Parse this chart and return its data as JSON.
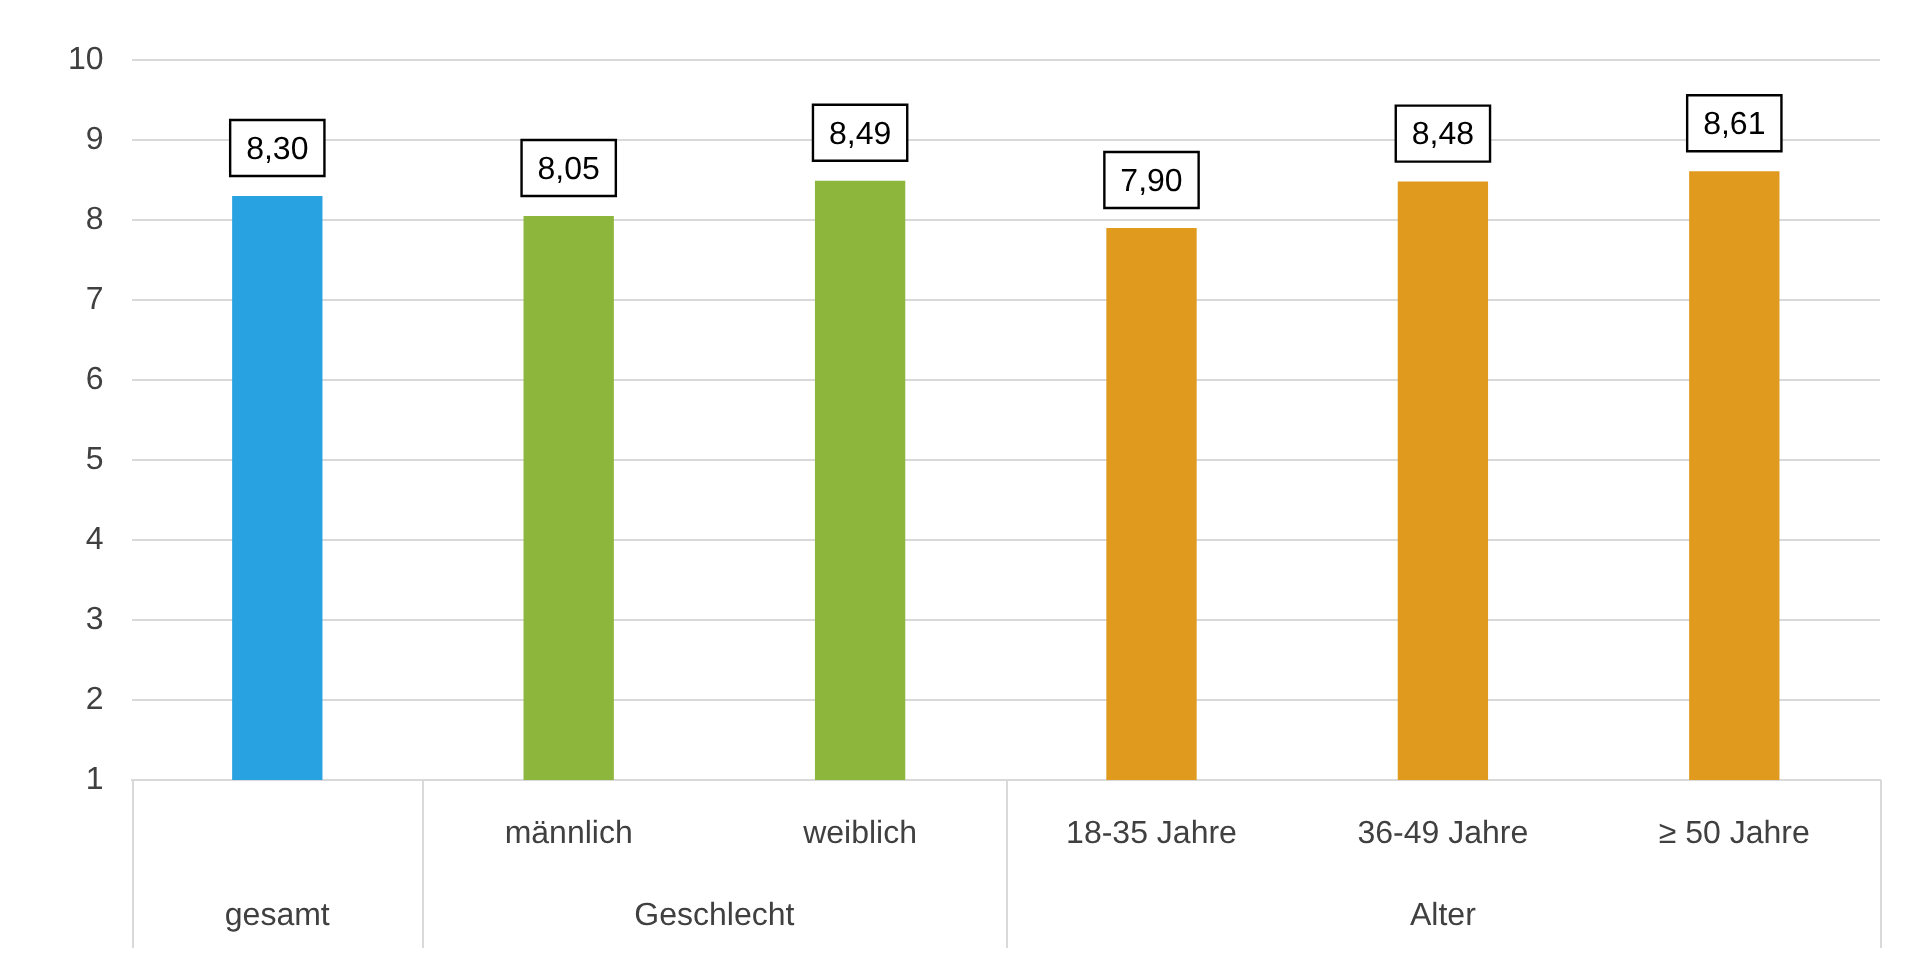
{
  "chart_data": {
    "type": "bar",
    "categories": [
      null,
      "männlich",
      "weiblich",
      "18-35 Jahre",
      "36-49 Jahre",
      "≥ 50 Jahre"
    ],
    "values": [
      8.3,
      8.05,
      8.49,
      7.9,
      8.48,
      8.61
    ],
    "colors": [
      "#28a2e1",
      "#8db63c",
      "#8db63c",
      "#e09a1e",
      "#e09a1e",
      "#e09a1e"
    ],
    "value_labels": [
      "8,30",
      "8,05",
      "8,49",
      "7,90",
      "8,48",
      "8,61"
    ],
    "annotations": [
      "gesamt",
      "Geschlecht",
      "Alter"
    ],
    "ylim": [
      1,
      10
    ],
    "yticks": [
      1,
      2,
      3,
      4,
      5,
      6,
      7,
      8,
      9,
      10
    ],
    "grid": "y"
  }
}
